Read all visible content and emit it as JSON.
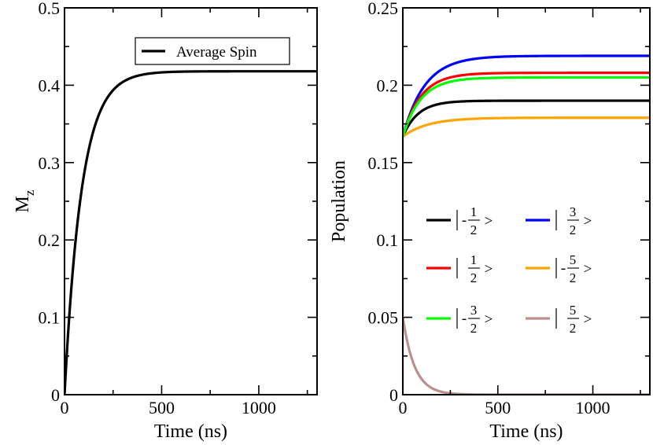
{
  "chart_data": [
    {
      "type": "line",
      "xlabel": "Time (ns)",
      "ylabel": "M",
      "ylabel_subscript": "z",
      "xlim": [
        0,
        1300
      ],
      "ylim": [
        0,
        0.5
      ],
      "xticks": [
        0,
        500,
        1000
      ],
      "xtick_labels": [
        "0",
        "500",
        "1000"
      ],
      "yticks": [
        0,
        0.1,
        0.2,
        0.3,
        0.4,
        0.5
      ],
      "ytick_labels": [
        "0",
        "0.1",
        "0.2",
        "0.3",
        "0.4",
        "0.5"
      ],
      "legend": "top-right",
      "series": [
        {
          "name": "Average Spin",
          "color": "#000000",
          "model": {
            "kind": "relax",
            "start": 0.0,
            "end": 0.418,
            "tau": 88
          }
        }
      ]
    },
    {
      "type": "line",
      "xlabel": "Time (ns)",
      "ylabel": "Population",
      "xlim": [
        0,
        1300
      ],
      "ylim": [
        0,
        0.25
      ],
      "xticks": [
        0,
        500,
        1000
      ],
      "xtick_labels": [
        "0",
        "500",
        "1000"
      ],
      "yticks": [
        0,
        0.05,
        0.1,
        0.15,
        0.2,
        0.25
      ],
      "ytick_labels": [
        "0",
        "0.05",
        "0.1",
        "0.15",
        "0.2",
        "0.25"
      ],
      "legend": "center",
      "series": [
        {
          "name": "|-1/2>",
          "sign": "-",
          "num": "1",
          "den": "2",
          "color": "#000000",
          "model": {
            "kind": "dip",
            "start": 0.1667,
            "end": 0.19,
            "tau": 80,
            "dip": 0.0,
            "dtau": 40
          }
        },
        {
          "name": "|3/2>",
          "sign": "",
          "num": "3",
          "den": "2",
          "color": "#0000ff",
          "model": {
            "kind": "relax",
            "start": 0.1667,
            "end": 0.219,
            "tau": 115
          }
        },
        {
          "name": "|1/2>",
          "sign": "",
          "num": "1",
          "den": "2",
          "color": "#ff0000",
          "model": {
            "kind": "relax",
            "start": 0.1667,
            "end": 0.208,
            "tau": 95
          }
        },
        {
          "name": "|-5/2>",
          "sign": "-",
          "num": "5",
          "den": "2",
          "color": "#ffa500",
          "model": {
            "kind": "relax",
            "start": 0.1667,
            "end": 0.179,
            "tau": 130
          }
        },
        {
          "name": "|-3/2>",
          "sign": "-",
          "num": "3",
          "den": "2",
          "color": "#00ff00",
          "model": {
            "kind": "relax",
            "start": 0.1667,
            "end": 0.205,
            "tau": 95
          }
        },
        {
          "name": "|5/2>",
          "sign": "",
          "num": "5",
          "den": "2",
          "color": "#bc8f8f",
          "model": {
            "kind": "relax",
            "start": 0.05,
            "end": 0.0,
            "tau": 62
          }
        }
      ]
    }
  ]
}
